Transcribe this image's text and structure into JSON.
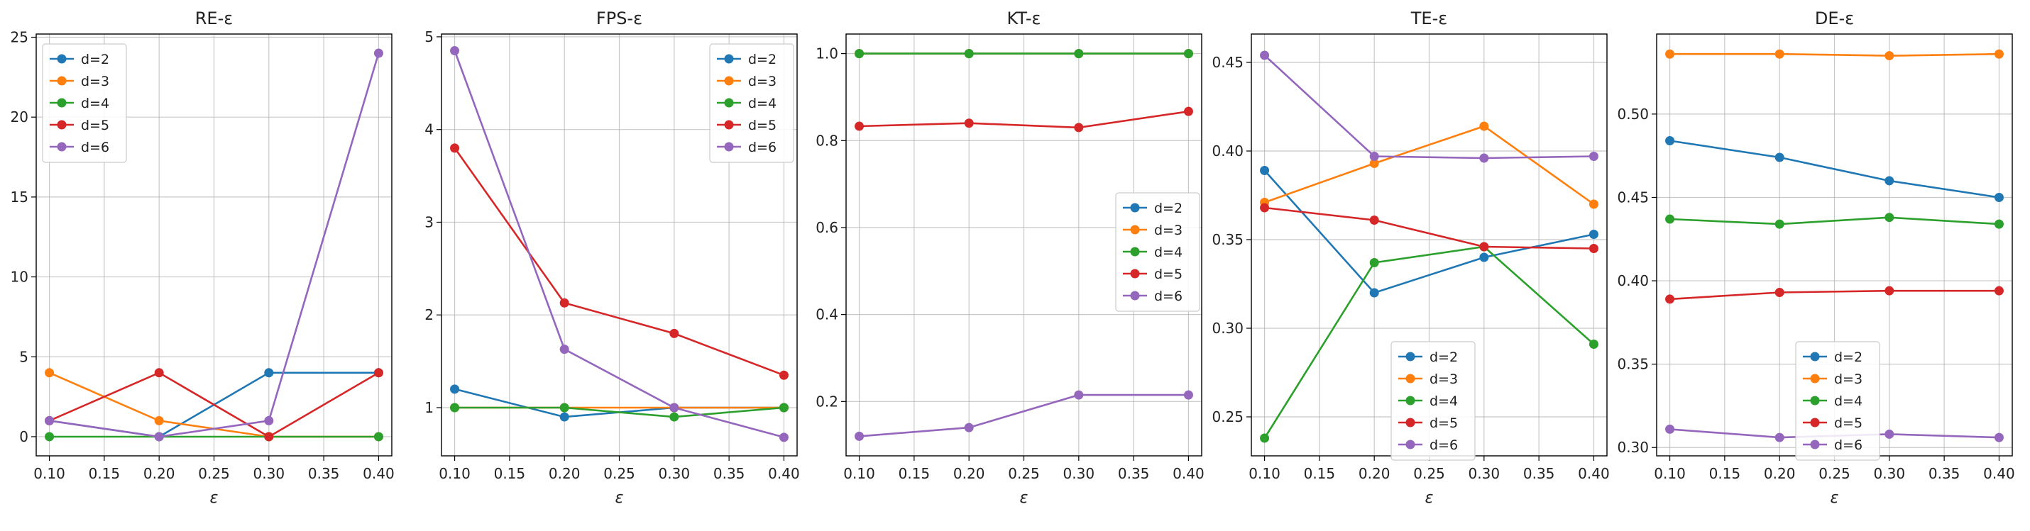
{
  "chart_data": [
    {
      "type": "line",
      "title": "RE-ε",
      "xlabel": "ε",
      "ylabel": "",
      "x": [
        0.1,
        0.2,
        0.3,
        0.4
      ],
      "xticks": [
        "0.10",
        "0.15",
        "0.20",
        "0.25",
        "0.30",
        "0.35",
        "0.40"
      ],
      "xlim": [
        0.088,
        0.412
      ],
      "yticks": [
        "0",
        "5",
        "10",
        "15",
        "20",
        "25"
      ],
      "ylim": [
        -1.2,
        25.2
      ],
      "grid": true,
      "legend_position": "top-left",
      "series": [
        {
          "name": "d=2",
          "values": [
            1,
            0,
            4,
            4
          ]
        },
        {
          "name": "d=3",
          "values": [
            4,
            1,
            0,
            0
          ]
        },
        {
          "name": "d=4",
          "values": [
            0,
            0,
            0,
            0
          ]
        },
        {
          "name": "d=5",
          "values": [
            1,
            4,
            0,
            4
          ]
        },
        {
          "name": "d=6",
          "values": [
            1,
            0,
            1,
            24
          ]
        }
      ]
    },
    {
      "type": "line",
      "title": "FPS-ε",
      "xlabel": "ε",
      "ylabel": "",
      "x": [
        0.1,
        0.2,
        0.3,
        0.4
      ],
      "xticks": [
        "0.10",
        "0.15",
        "0.20",
        "0.25",
        "0.30",
        "0.35",
        "0.40"
      ],
      "xlim": [
        0.088,
        0.412
      ],
      "yticks": [
        "1",
        "2",
        "3",
        "4",
        "5"
      ],
      "ylim": [
        0.48,
        5.03
      ],
      "grid": true,
      "legend_position": "top-right",
      "series": [
        {
          "name": "d=2",
          "values": [
            1.2,
            0.9,
            1.0,
            1.0
          ]
        },
        {
          "name": "d=3",
          "values": [
            1.0,
            1.0,
            1.0,
            1.0
          ]
        },
        {
          "name": "d=4",
          "values": [
            1.0,
            1.0,
            0.9,
            1.0
          ]
        },
        {
          "name": "d=5",
          "values": [
            3.8,
            2.13,
            1.8,
            1.35
          ]
        },
        {
          "name": "d=6",
          "values": [
            4.85,
            1.63,
            1.0,
            0.68
          ]
        }
      ]
    },
    {
      "type": "line",
      "title": "KT-ε",
      "xlabel": "ε",
      "ylabel": "",
      "x": [
        0.1,
        0.2,
        0.3,
        0.4
      ],
      "xticks": [
        "0.10",
        "0.15",
        "0.20",
        "0.25",
        "0.30",
        "0.35",
        "0.40"
      ],
      "xlim": [
        0.088,
        0.412
      ],
      "yticks": [
        "0.2",
        "0.4",
        "0.6",
        "0.8",
        "1.0"
      ],
      "ylim": [
        0.075,
        1.045
      ],
      "grid": true,
      "legend_position": "center-right",
      "series": [
        {
          "name": "d=2",
          "values": [
            1.0,
            1.0,
            1.0,
            1.0
          ]
        },
        {
          "name": "d=3",
          "values": [
            1.0,
            1.0,
            1.0,
            1.0
          ]
        },
        {
          "name": "d=4",
          "values": [
            1.0,
            1.0,
            1.0,
            1.0
          ]
        },
        {
          "name": "d=5",
          "values": [
            0.833,
            0.84,
            0.83,
            0.867
          ]
        },
        {
          "name": "d=6",
          "values": [
            0.12,
            0.14,
            0.215,
            0.215
          ]
        }
      ]
    },
    {
      "type": "line",
      "title": "TE-ε",
      "xlabel": "ε",
      "ylabel": "",
      "x": [
        0.1,
        0.2,
        0.3,
        0.4
      ],
      "xticks": [
        "0.10",
        "0.15",
        "0.20",
        "0.25",
        "0.30",
        "0.35",
        "0.40"
      ],
      "xlim": [
        0.088,
        0.412
      ],
      "yticks": [
        "0.25",
        "0.30",
        "0.35",
        "0.40",
        "0.45"
      ],
      "ylim": [
        0.228,
        0.466
      ],
      "grid": true,
      "legend_position": "lower-center",
      "series": [
        {
          "name": "d=2",
          "values": [
            0.389,
            0.32,
            0.34,
            0.353
          ]
        },
        {
          "name": "d=3",
          "values": [
            0.371,
            0.393,
            0.414,
            0.37
          ]
        },
        {
          "name": "d=4",
          "values": [
            0.238,
            0.337,
            0.346,
            0.291
          ]
        },
        {
          "name": "d=5",
          "values": [
            0.368,
            0.361,
            0.346,
            0.345
          ]
        },
        {
          "name": "d=6",
          "values": [
            0.454,
            0.397,
            0.396,
            0.397
          ]
        }
      ]
    },
    {
      "type": "line",
      "title": "DE-ε",
      "xlabel": "ε",
      "ylabel": "",
      "x": [
        0.1,
        0.2,
        0.3,
        0.4
      ],
      "xticks": [
        "0.10",
        "0.15",
        "0.20",
        "0.25",
        "0.30",
        "0.35",
        "0.40"
      ],
      "xlim": [
        0.088,
        0.412
      ],
      "yticks": [
        "0.30",
        "0.35",
        "0.40",
        "0.45",
        "0.50"
      ],
      "ylim": [
        0.295,
        0.548
      ],
      "grid": true,
      "legend_position": "lower-center",
      "series": [
        {
          "name": "d=2",
          "values": [
            0.484,
            0.474,
            0.46,
            0.45
          ]
        },
        {
          "name": "d=3",
          "values": [
            0.536,
            0.536,
            0.535,
            0.536
          ]
        },
        {
          "name": "d=4",
          "values": [
            0.437,
            0.434,
            0.438,
            0.434
          ]
        },
        {
          "name": "d=5",
          "values": [
            0.389,
            0.393,
            0.394,
            0.394
          ]
        },
        {
          "name": "d=6",
          "values": [
            0.311,
            0.306,
            0.308,
            0.306
          ]
        }
      ]
    }
  ],
  "colors": [
    "#1f77b4",
    "#ff7f0e",
    "#2ca02c",
    "#d62728",
    "#9467bd"
  ]
}
